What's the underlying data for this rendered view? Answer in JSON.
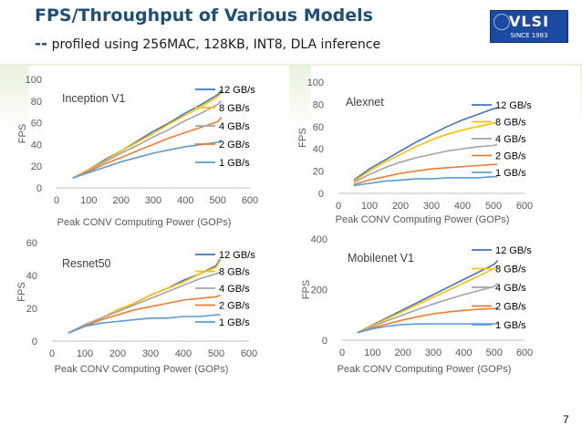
{
  "slide": {
    "title": "FPS/Throughput of Various Models",
    "subtitle_dash": "--",
    "subtitle": "profiled using  256MAC, 128KB, INT8, DLA inference",
    "logo_text": "VLSI",
    "logo_subtext": "SINCE 1983",
    "page_number": "7"
  },
  "colors": {
    "12 GB/s": "#4472c4",
    "8 GB/s": "#ffc000",
    "4 GB/s": "#a5a5a5",
    "2 GB/s": "#ed7d31",
    "1 GB/s": "#5b9bd5"
  },
  "chart_data": [
    {
      "type": "line",
      "title": "Inception V1",
      "xlabel": "Peak CONV Computing Power  (GOPs)",
      "ylabel": "FPS",
      "xlim": [
        0,
        600
      ],
      "ylim": [
        0,
        100
      ],
      "xticks": [
        0,
        100,
        200,
        300,
        400,
        500,
        600
      ],
      "yticks": [
        0,
        20,
        40,
        60,
        80,
        100
      ],
      "legend": "right",
      "x": [
        50,
        100,
        150,
        200,
        250,
        300,
        350,
        400,
        450,
        500,
        512
      ],
      "series": [
        {
          "name": "12 GB/s",
          "values": [
            9,
            17,
            26,
            34,
            43,
            52,
            60,
            69,
            77,
            86,
            90
          ]
        },
        {
          "name": "8 GB/s",
          "values": [
            9,
            17,
            25,
            34,
            42,
            50,
            59,
            67,
            75,
            84,
            88
          ]
        },
        {
          "name": "4 GB/s",
          "values": [
            9,
            16,
            24,
            32,
            39,
            47,
            54,
            62,
            69,
            77,
            80
          ]
        },
        {
          "name": "2 GB/s",
          "values": [
            9,
            15,
            22,
            28,
            34,
            40,
            46,
            51,
            56,
            61,
            65
          ]
        },
        {
          "name": "1 GB/s",
          "values": [
            9,
            14,
            19,
            24,
            28,
            32,
            35,
            38,
            40,
            42,
            44
          ]
        }
      ]
    },
    {
      "type": "line",
      "title": "Alexnet",
      "xlabel": "Peak CONV Computing Power  (GOPs)",
      "ylabel": "FPS",
      "xlim": [
        0,
        600
      ],
      "ylim": [
        0,
        100
      ],
      "xticks": [
        0,
        100,
        200,
        300,
        400,
        500,
        600
      ],
      "yticks": [
        0,
        20,
        40,
        60,
        80,
        100
      ],
      "legend": "right",
      "x": [
        50,
        100,
        150,
        200,
        250,
        300,
        350,
        400,
        450,
        500,
        512
      ],
      "series": [
        {
          "name": "12 GB/s",
          "values": [
            12,
            22,
            30,
            38,
            46,
            53,
            60,
            66,
            71,
            76,
            77
          ]
        },
        {
          "name": "8 GB/s",
          "values": [
            11,
            20,
            28,
            35,
            42,
            48,
            53,
            57,
            60,
            63,
            64
          ]
        },
        {
          "name": "4 GB/s",
          "values": [
            10,
            17,
            23,
            28,
            32,
            35,
            38,
            40,
            42,
            43,
            44
          ]
        },
        {
          "name": "2 GB/s",
          "values": [
            8,
            12,
            15,
            18,
            20,
            22,
            23,
            24,
            25,
            26,
            26
          ]
        },
        {
          "name": "1 GB/s",
          "values": [
            7,
            9,
            11,
            12,
            13,
            13,
            14,
            14,
            14,
            15,
            15
          ]
        }
      ]
    },
    {
      "type": "line",
      "title": "Resnet50",
      "xlabel": "Peak CONV Computing Power  (GOPs)",
      "ylabel": "FPS",
      "xlim": [
        0,
        600
      ],
      "ylim": [
        0,
        60
      ],
      "xticks": [
        0,
        100,
        200,
        300,
        400,
        500,
        600
      ],
      "yticks": [
        0,
        20,
        40,
        60
      ],
      "legend": "right",
      "x": [
        50,
        100,
        150,
        200,
        250,
        300,
        350,
        400,
        450,
        500,
        512
      ],
      "series": [
        {
          "name": "12 GB/s",
          "values": [
            5,
            10,
            14,
            19,
            23,
            28,
            32,
            37,
            41,
            46,
            50
          ]
        },
        {
          "name": "8 GB/s",
          "values": [
            5,
            10,
            14,
            19,
            23,
            28,
            32,
            36,
            41,
            45,
            49
          ]
        },
        {
          "name": "4 GB/s",
          "values": [
            5,
            10,
            14,
            18,
            22,
            26,
            30,
            34,
            38,
            41,
            42
          ]
        },
        {
          "name": "2 GB/s",
          "values": [
            5,
            9,
            13,
            16,
            19,
            21,
            23,
            25,
            26,
            27,
            28
          ]
        },
        {
          "name": "1 GB/s",
          "values": [
            5,
            9,
            11,
            12,
            13,
            14,
            14,
            15,
            15,
            16,
            16
          ]
        }
      ]
    },
    {
      "type": "line",
      "title": "Mobilenet V1",
      "xlabel": "Peak CONV Computing Power  (GOPs)",
      "ylabel": "FPS",
      "xlim": [
        0,
        600
      ],
      "ylim": [
        0,
        400
      ],
      "xticks": [
        0,
        100,
        200,
        300,
        400,
        500,
        600
      ],
      "yticks": [
        0,
        200,
        400
      ],
      "legend": "right",
      "x": [
        50,
        100,
        150,
        200,
        250,
        300,
        350,
        400,
        450,
        500,
        512
      ],
      "series": [
        {
          "name": "12 GB/s",
          "values": [
            30,
            60,
            90,
            120,
            150,
            180,
            210,
            240,
            270,
            300,
            315
          ]
        },
        {
          "name": "8 GB/s",
          "values": [
            30,
            58,
            86,
            114,
            142,
            170,
            198,
            226,
            254,
            282,
            295
          ]
        },
        {
          "name": "4 GB/s",
          "values": [
            30,
            54,
            78,
            100,
            122,
            143,
            162,
            180,
            196,
            212,
            225
          ]
        },
        {
          "name": "2 GB/s",
          "values": [
            30,
            48,
            65,
            80,
            93,
            104,
            112,
            118,
            122,
            125,
            126
          ]
        },
        {
          "name": "1 GB/s",
          "values": [
            30,
            45,
            56,
            62,
            64,
            65,
            65,
            65,
            65,
            65,
            65
          ]
        }
      ]
    }
  ]
}
